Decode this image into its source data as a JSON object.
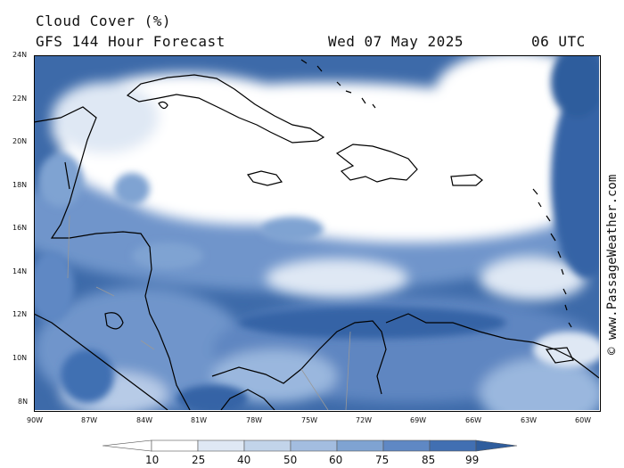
{
  "header": {
    "title": "Cloud Cover (%)",
    "subtitle": "GFS 144 Hour Forecast",
    "date": "Wed 07 May 2025",
    "time": "06 UTC"
  },
  "credit": "© www.PassageWeather.com",
  "axes": {
    "lat_labels": [
      "24N",
      "22N",
      "20N",
      "18N",
      "16N",
      "14N",
      "12N",
      "10N",
      "8N"
    ],
    "lon_labels": [
      "90W",
      "87W",
      "84W",
      "81W",
      "78W",
      "75W",
      "72W",
      "69W",
      "66W",
      "63W",
      "60W"
    ]
  },
  "colorbar": {
    "ticks": [
      "10",
      "25",
      "40",
      "50",
      "60",
      "75",
      "85",
      "99"
    ],
    "colors": [
      "#ffffff",
      "#dfe8f4",
      "#c2d4ea",
      "#a3bde0",
      "#7fa3d2",
      "#5f88c4",
      "#416fb2",
      "#2f5d9d"
    ]
  },
  "map_colors": {
    "ocean_deep": "#3564a6",
    "cloud_clear": "#ffffff",
    "coast": "#000000",
    "border": "#999999"
  }
}
